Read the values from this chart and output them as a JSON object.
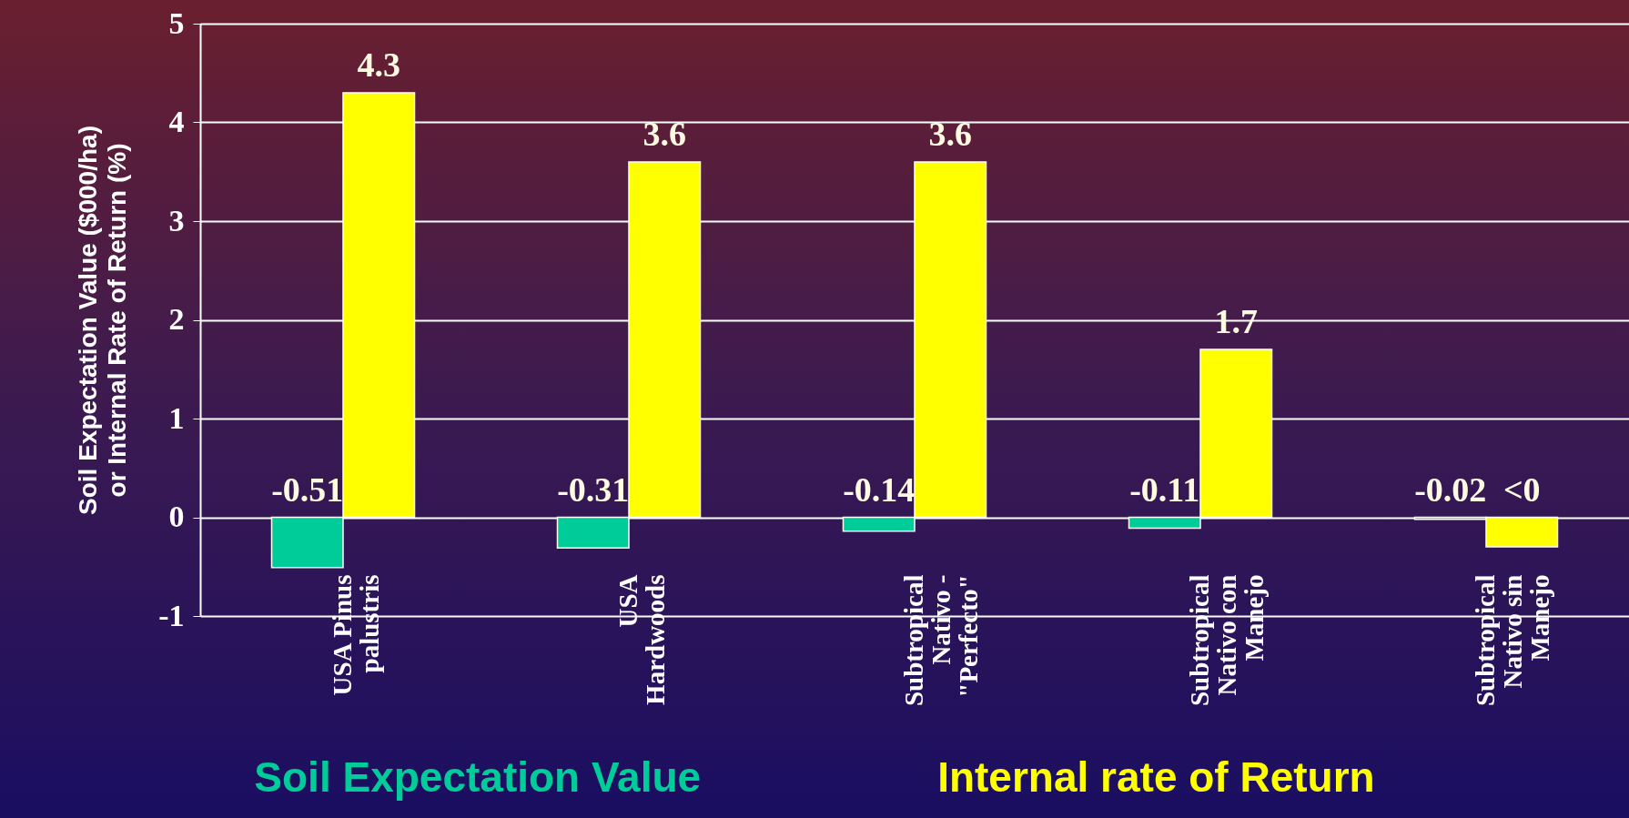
{
  "chart_data": {
    "type": "bar",
    "ylabel": "Soil Expectation Value ($000/ha) or Internal Rate of Return (%)",
    "categories": [
      "USA Pinus palustris",
      "USA Hardwoods",
      "Subtropical Nativo - \"Perfecto\"",
      "Subtropical Nativo con Manejo",
      "Subtropical Nativo sin Manejo"
    ],
    "series": [
      {
        "name": "Soil Expectation Value",
        "color": "#00cc99",
        "values": [
          -0.51,
          -0.31,
          -0.14,
          -0.11,
          -0.02
        ],
        "value_labels": [
          "-0.51",
          "-0.31",
          "-0.14",
          "-0.11",
          "-0.02"
        ]
      },
      {
        "name": "Internal rate of Return",
        "color": "#ffff00",
        "values": [
          4.3,
          3.6,
          3.6,
          1.7,
          -0.3
        ],
        "value_labels": [
          "4.3",
          "3.6",
          "3.6",
          "1.7",
          "<0"
        ]
      }
    ],
    "ylim": [
      -1,
      5
    ],
    "yticks": [
      -1,
      0,
      1,
      2,
      3,
      4,
      5
    ],
    "grid": "y",
    "legend": "bottom"
  }
}
